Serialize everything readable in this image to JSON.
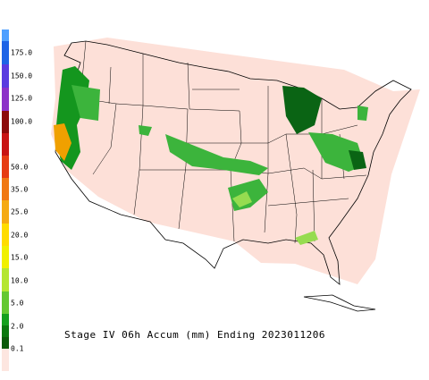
{
  "title": "Stage IV 06h Accum (mm) Ending 2023011206",
  "colorbar": {
    "labels": [
      "175.0",
      "150.0",
      "125.0",
      "100.0",
      "50.0",
      "35.0",
      "25.0",
      "20.0",
      "15.0",
      "10.0",
      "5.0",
      "2.0",
      "0.1"
    ]
  }
}
